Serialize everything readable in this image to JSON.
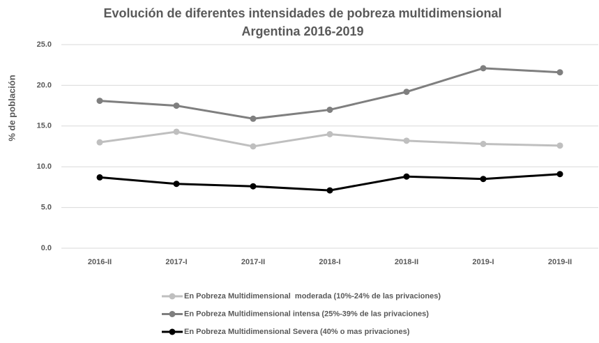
{
  "chart_data": {
    "type": "line",
    "title": [
      "Evolución de diferentes intensidades de pobreza multidimensional",
      "Argentina 2016-2019"
    ],
    "y_label": "% de población",
    "categories": [
      "2016-II",
      "2017-I",
      "2017-II",
      "2018-I",
      "2018-II",
      "2019-I",
      "2019-II"
    ],
    "series": [
      {
        "name": "En Pobreza Multidimensional  moderada (10%-24% de las privaciones)",
        "color": "#bfbfbf",
        "values": [
          13.0,
          14.3,
          12.5,
          14.0,
          13.2,
          12.8,
          12.6
        ]
      },
      {
        "name": "En Pobreza Multidimensional intensa (25%-39% de las privaciones)",
        "color": "#7f7f7f",
        "values": [
          18.1,
          17.5,
          15.9,
          17.0,
          19.2,
          22.1,
          21.6
        ]
      },
      {
        "name": "En Pobreza Multidimensional Severa (40% o mas privaciones)",
        "color": "#000000",
        "values": [
          8.7,
          7.9,
          7.6,
          7.1,
          8.8,
          8.5,
          9.1
        ]
      }
    ],
    "ylim": [
      0,
      25
    ],
    "yticks": [
      {
        "value": 0,
        "label": "0.0"
      },
      {
        "value": 5,
        "label": "5.0"
      },
      {
        "value": 10,
        "label": "10.0"
      },
      {
        "value": 15,
        "label": "15.0"
      },
      {
        "value": 20,
        "label": "20.0"
      },
      {
        "value": 25,
        "label": "25.0"
      }
    ],
    "grid": true,
    "legend": "bottom"
  }
}
